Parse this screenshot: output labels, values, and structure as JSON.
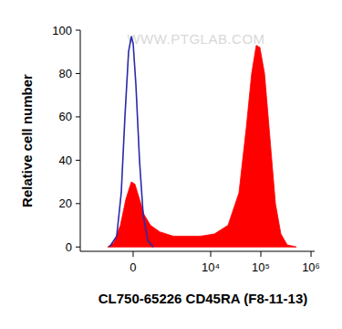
{
  "chart_data": {
    "type": "area",
    "annotation": "WWW.PTGLAB.COM",
    "x_label": "CL750-65226 CD45RA (F8-11-13)",
    "y_label": "Relative cell number",
    "log": "x",
    "xlim": [
      -3200,
      1180000
    ],
    "ylim": [
      -2,
      100
    ],
    "xticks": [
      0,
      {
        "value": 10000,
        "label": "10⁴"
      },
      {
        "value": 100000,
        "label": "10⁵"
      },
      {
        "value": 1000000,
        "label": "10⁶"
      }
    ],
    "yticks": [
      0,
      20,
      40,
      60,
      80,
      100
    ],
    "series": [
      {
        "type": "area",
        "color": "#ff0000",
        "x": [
          -832,
          -568,
          -353,
          -194,
          -48,
          48,
          169,
          298,
          503,
          883,
          1750,
          3346,
          6304,
          11800,
          22170,
          36590,
          51190,
          65550,
          80940,
          95760,
          118560,
          152190,
          195510,
          250800,
          335160,
          510150
        ],
        "values": [
          0,
          2,
          10,
          22,
          30,
          29,
          22,
          15,
          10,
          7,
          5,
          5,
          5,
          6,
          10,
          25,
          55,
          80,
          93,
          92,
          80,
          50,
          20,
          6,
          1,
          0
        ]
      },
      {
        "type": "line",
        "color": "#2a2aa8",
        "x": [
          -748,
          -471,
          -326,
          -220,
          -120,
          -48,
          0,
          72,
          169,
          272,
          411,
          603
        ],
        "values": [
          0,
          5,
          25,
          60,
          90,
          97,
          94,
          75,
          40,
          15,
          3,
          0
        ]
      }
    ]
  }
}
